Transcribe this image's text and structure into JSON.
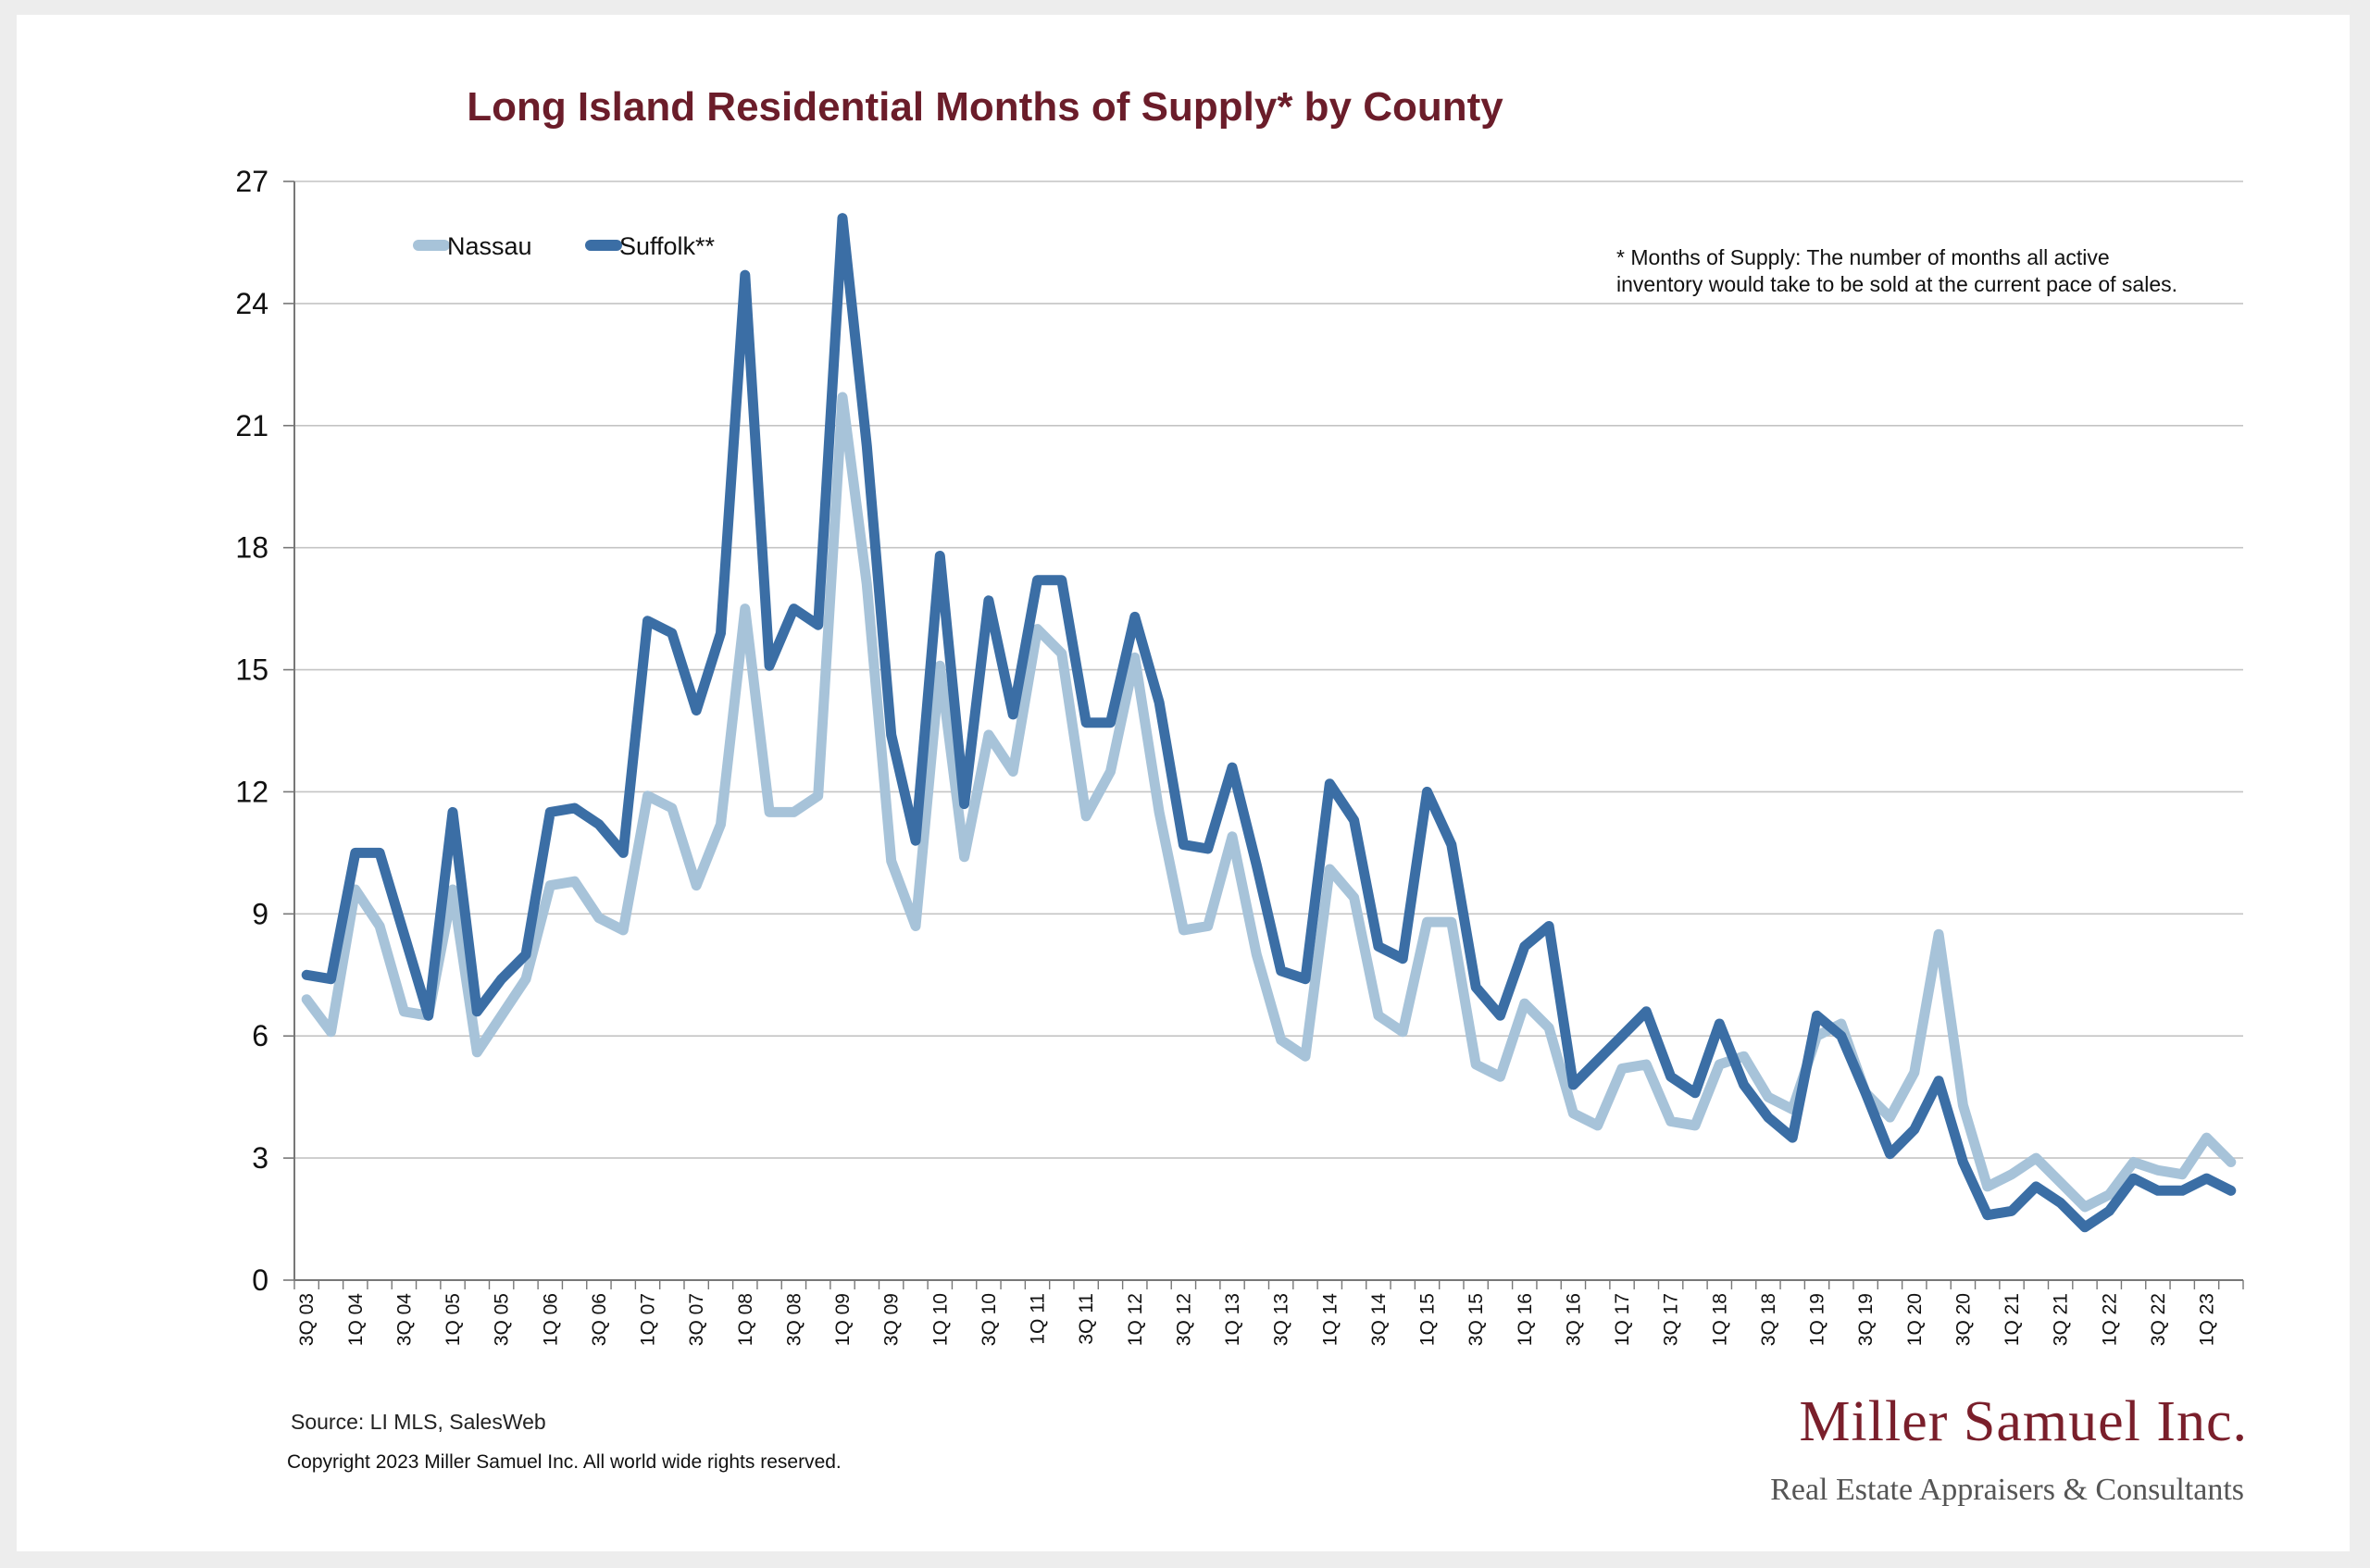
{
  "chart_data": {
    "type": "line",
    "title": "Long Island Residential Months of Supply* by County",
    "ylim": [
      0,
      27
    ],
    "yticks": [
      "0",
      "3",
      "6",
      "9",
      "12",
      "15",
      "18",
      "21",
      "24",
      "27"
    ],
    "grid": true,
    "legend_position": "top-left",
    "x": [
      "3Q 03",
      "4Q 03",
      "1Q 04",
      "2Q 04",
      "3Q 04",
      "4Q 04",
      "1Q 05",
      "2Q 05",
      "3Q 05",
      "4Q 05",
      "1Q 06",
      "2Q 06",
      "3Q 06",
      "4Q 06",
      "1Q 07",
      "2Q 07",
      "3Q 07",
      "4Q 07",
      "1Q 08",
      "2Q 08",
      "3Q 08",
      "4Q 08",
      "1Q 09",
      "2Q 09",
      "3Q 09",
      "4Q 09",
      "1Q 10",
      "2Q 10",
      "3Q 10",
      "4Q 10",
      "1Q 11",
      "2Q 11",
      "3Q 11",
      "4Q 11",
      "1Q 12",
      "2Q 12",
      "3Q 12",
      "4Q 12",
      "1Q 13",
      "2Q 13",
      "3Q 13",
      "4Q 13",
      "1Q 14",
      "2Q 14",
      "3Q 14",
      "4Q 14",
      "1Q 15",
      "2Q 15",
      "3Q 15",
      "4Q 15",
      "1Q 16",
      "2Q 16",
      "3Q 16",
      "4Q 16",
      "1Q 17",
      "2Q 17",
      "3Q 17",
      "4Q 17",
      "1Q 18",
      "2Q 18",
      "3Q 18",
      "4Q 18",
      "1Q 19",
      "2Q 19",
      "3Q 19",
      "4Q 19",
      "1Q 20",
      "2Q 20",
      "3Q 20",
      "4Q 20",
      "1Q 21",
      "2Q 21",
      "3Q 21",
      "4Q 21",
      "1Q 22",
      "2Q 22",
      "3Q 22",
      "4Q 22",
      "1Q 23",
      "2Q 23"
    ],
    "xtick_labels": [
      "3Q 03",
      "1Q 04",
      "3Q 04",
      "1Q 05",
      "3Q 05",
      "1Q 06",
      "3Q 06",
      "1Q 07",
      "3Q 07",
      "1Q 08",
      "3Q 08",
      "1Q 09",
      "3Q 09",
      "1Q 10",
      "3Q 10",
      "1Q 11",
      "3Q 11",
      "1Q 12",
      "3Q 12",
      "1Q 13",
      "3Q 13",
      "1Q 14",
      "3Q 14",
      "1Q 15",
      "3Q 15",
      "1Q 16",
      "3Q 16",
      "1Q 17",
      "3Q 17",
      "1Q 18",
      "3Q 18",
      "1Q 19",
      "3Q 19",
      "1Q 20",
      "3Q 20",
      "1Q 21",
      "3Q 21",
      "1Q 22",
      "3Q 22",
      "1Q 23"
    ],
    "series": [
      {
        "name": "Nassau",
        "color": "#a7c3d9",
        "values": [
          6.9,
          6.1,
          9.6,
          8.7,
          6.6,
          6.5,
          9.6,
          5.6,
          6.5,
          7.4,
          9.7,
          9.8,
          8.9,
          8.6,
          11.9,
          11.6,
          9.7,
          11.2,
          16.5,
          11.5,
          11.5,
          11.9,
          21.7,
          17.1,
          10.3,
          8.7,
          15.1,
          10.4,
          13.4,
          12.5,
          16,
          15.4,
          11.4,
          12.5,
          15.3,
          11.5,
          8.6,
          8.7,
          10.9,
          8,
          5.9,
          5.5,
          10.1,
          9.4,
          6.5,
          6.1,
          8.8,
          8.8,
          5.3,
          5,
          6.8,
          6.2,
          4.1,
          3.8,
          5.2,
          5.3,
          3.9,
          3.8,
          5.3,
          5.5,
          4.5,
          4.2,
          6,
          6.3,
          4.6,
          4,
          5.1,
          8.5,
          4.3,
          2.3,
          2.6,
          3,
          2.4,
          1.8,
          2.1,
          2.9,
          2.7,
          2.6,
          3.5,
          2.9
        ]
      },
      {
        "name": "Suffolk**",
        "color": "#3b6ea5",
        "values": [
          7.5,
          7.4,
          10.5,
          10.5,
          8.5,
          6.5,
          11.5,
          6.6,
          7.4,
          8,
          11.5,
          11.6,
          11.2,
          10.5,
          16.2,
          15.9,
          14,
          15.9,
          24.7,
          15.1,
          16.5,
          16.1,
          26.1,
          20.5,
          13.4,
          10.8,
          17.8,
          11.7,
          16.7,
          13.9,
          17.2,
          17.2,
          13.7,
          13.7,
          16.3,
          14.2,
          10.7,
          10.6,
          12.6,
          10.2,
          7.6,
          7.4,
          12.2,
          11.3,
          8.2,
          7.9,
          12,
          10.7,
          7.2,
          6.5,
          8.2,
          8.7,
          4.8,
          5.4,
          6,
          6.6,
          5,
          4.6,
          6.3,
          4.8,
          4,
          3.5,
          6.5,
          6,
          4.6,
          3.1,
          3.7,
          4.9,
          2.9,
          1.6,
          1.7,
          2.3,
          1.9,
          1.3,
          1.7,
          2.5,
          2.2,
          2.2,
          2.5,
          2.2
        ]
      }
    ],
    "note_lines": [
      "* Months of Supply: The number of months all active",
      "inventory would take to be sold at the current pace of sales."
    ]
  },
  "footer": {
    "source": "Source:  LI MLS, SalesWeb",
    "copyright": "Copyright 2023 Miller Samuel Inc.  All world wide rights reserved."
  },
  "logo": {
    "name": "Miller Samuel Inc.",
    "tagline": "Real Estate Appraisers & Consultants"
  }
}
